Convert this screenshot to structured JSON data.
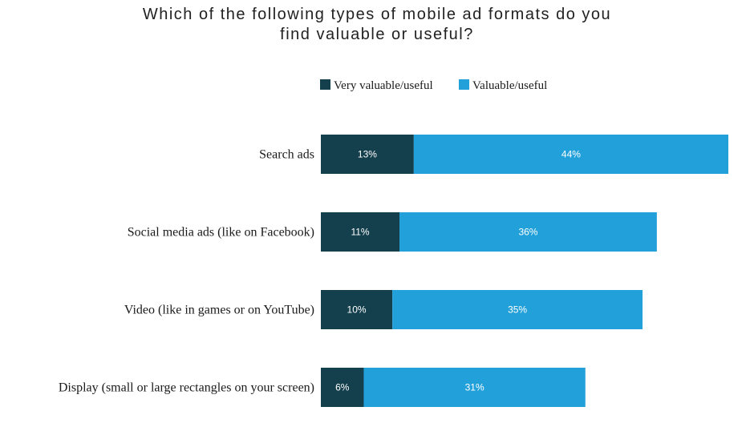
{
  "chart_data": {
    "type": "bar",
    "orientation": "horizontal",
    "stacked": true,
    "title_lines": [
      "Which of the following types of mobile ad formats do you",
      "find valuable or useful?"
    ],
    "categories": [
      "Search ads",
      "Social media ads (like on Facebook)",
      "Video (like in games or on YouTube)",
      "Display (small or large rectangles on your screen)"
    ],
    "series": [
      {
        "name": "Very valuable/useful",
        "color": "#143f4d",
        "values": [
          13,
          11,
          10,
          6
        ],
        "labels": [
          "13%",
          "11%",
          "10%",
          "6%"
        ]
      },
      {
        "name": "Valuable/useful",
        "color": "#22a0d9",
        "values": [
          44,
          36,
          35,
          31
        ],
        "labels": [
          "44%",
          "36%",
          "35%",
          "31%"
        ]
      }
    ],
    "legend_position": "top-center",
    "grid": false,
    "xlim": [
      0,
      57
    ]
  }
}
